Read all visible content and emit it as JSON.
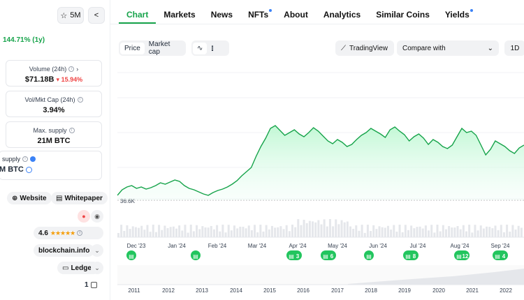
{
  "left": {
    "watch_count": "5M",
    "price_change": "144.71% (1y)",
    "stats": [
      {
        "label": "Volume (24h)",
        "value": "$71.18B",
        "change": "15.94%"
      },
      {
        "label": "Vol/Mkt Cap (24h)",
        "value": "3.94%"
      },
      {
        "label": "Max. supply",
        "value": "21M BTC"
      }
    ],
    "supply": {
      "label": "supply",
      "value": "M BTC"
    },
    "links": {
      "website": "Website",
      "whitepaper": "Whitepaper"
    },
    "rating": "4.6",
    "explorer": "blockchain.info",
    "wallet": "Ledger",
    "count": "1"
  },
  "tabs": [
    {
      "label": "Chart",
      "active": true
    },
    {
      "label": "Markets"
    },
    {
      "label": "News"
    },
    {
      "label": "NFTs",
      "dot": true
    },
    {
      "label": "About"
    },
    {
      "label": "Analytics"
    },
    {
      "label": "Similar Coins"
    },
    {
      "label": "Yields",
      "dot": true
    }
  ],
  "toolbar": {
    "price": "Price",
    "market_cap": "Market cap",
    "tradingview": "TradingView",
    "compare": "Compare with",
    "range": "1D"
  },
  "chart_data": {
    "type": "area",
    "baseline_label": "36.6K",
    "x_ticks": [
      "Dec '23",
      "Jan '24",
      "Feb '24",
      "Mar '24",
      "Apr '24",
      "May '24",
      "Jun '24",
      "Jul '24",
      "Aug '24",
      "Sep '24"
    ],
    "year_ticks": [
      "2011",
      "2012",
      "2013",
      "2014",
      "2015",
      "2016",
      "2017",
      "2018",
      "2019",
      "2020",
      "2021",
      "2022"
    ],
    "news_markers": [
      "",
      "",
      "3",
      "6",
      "",
      "8",
      "12",
      "4"
    ],
    "colors": {
      "line": "#16a34a",
      "fill": "#dcfce7"
    },
    "y_norm": [
      0.0,
      0.08,
      0.12,
      0.14,
      0.1,
      0.12,
      0.09,
      0.11,
      0.14,
      0.18,
      0.16,
      0.19,
      0.22,
      0.2,
      0.14,
      0.1,
      0.08,
      0.05,
      0.02,
      0.0,
      0.04,
      0.07,
      0.09,
      0.12,
      0.16,
      0.21,
      0.28,
      0.34,
      0.4,
      0.56,
      0.7,
      0.82,
      0.96,
      1.0,
      0.93,
      0.86,
      0.9,
      0.94,
      0.88,
      0.84,
      0.9,
      0.97,
      0.92,
      0.85,
      0.78,
      0.74,
      0.8,
      0.76,
      0.7,
      0.73,
      0.8,
      0.86,
      0.9,
      0.96,
      0.92,
      0.88,
      0.83,
      0.94,
      0.98,
      0.92,
      0.87,
      0.78,
      0.84,
      0.88,
      0.82,
      0.73,
      0.8,
      0.76,
      0.7,
      0.67,
      0.72,
      0.84,
      0.96,
      0.9,
      0.92,
      0.86,
      0.72,
      0.58,
      0.66,
      0.78,
      0.74,
      0.7,
      0.64,
      0.6,
      0.68,
      0.72
    ]
  }
}
